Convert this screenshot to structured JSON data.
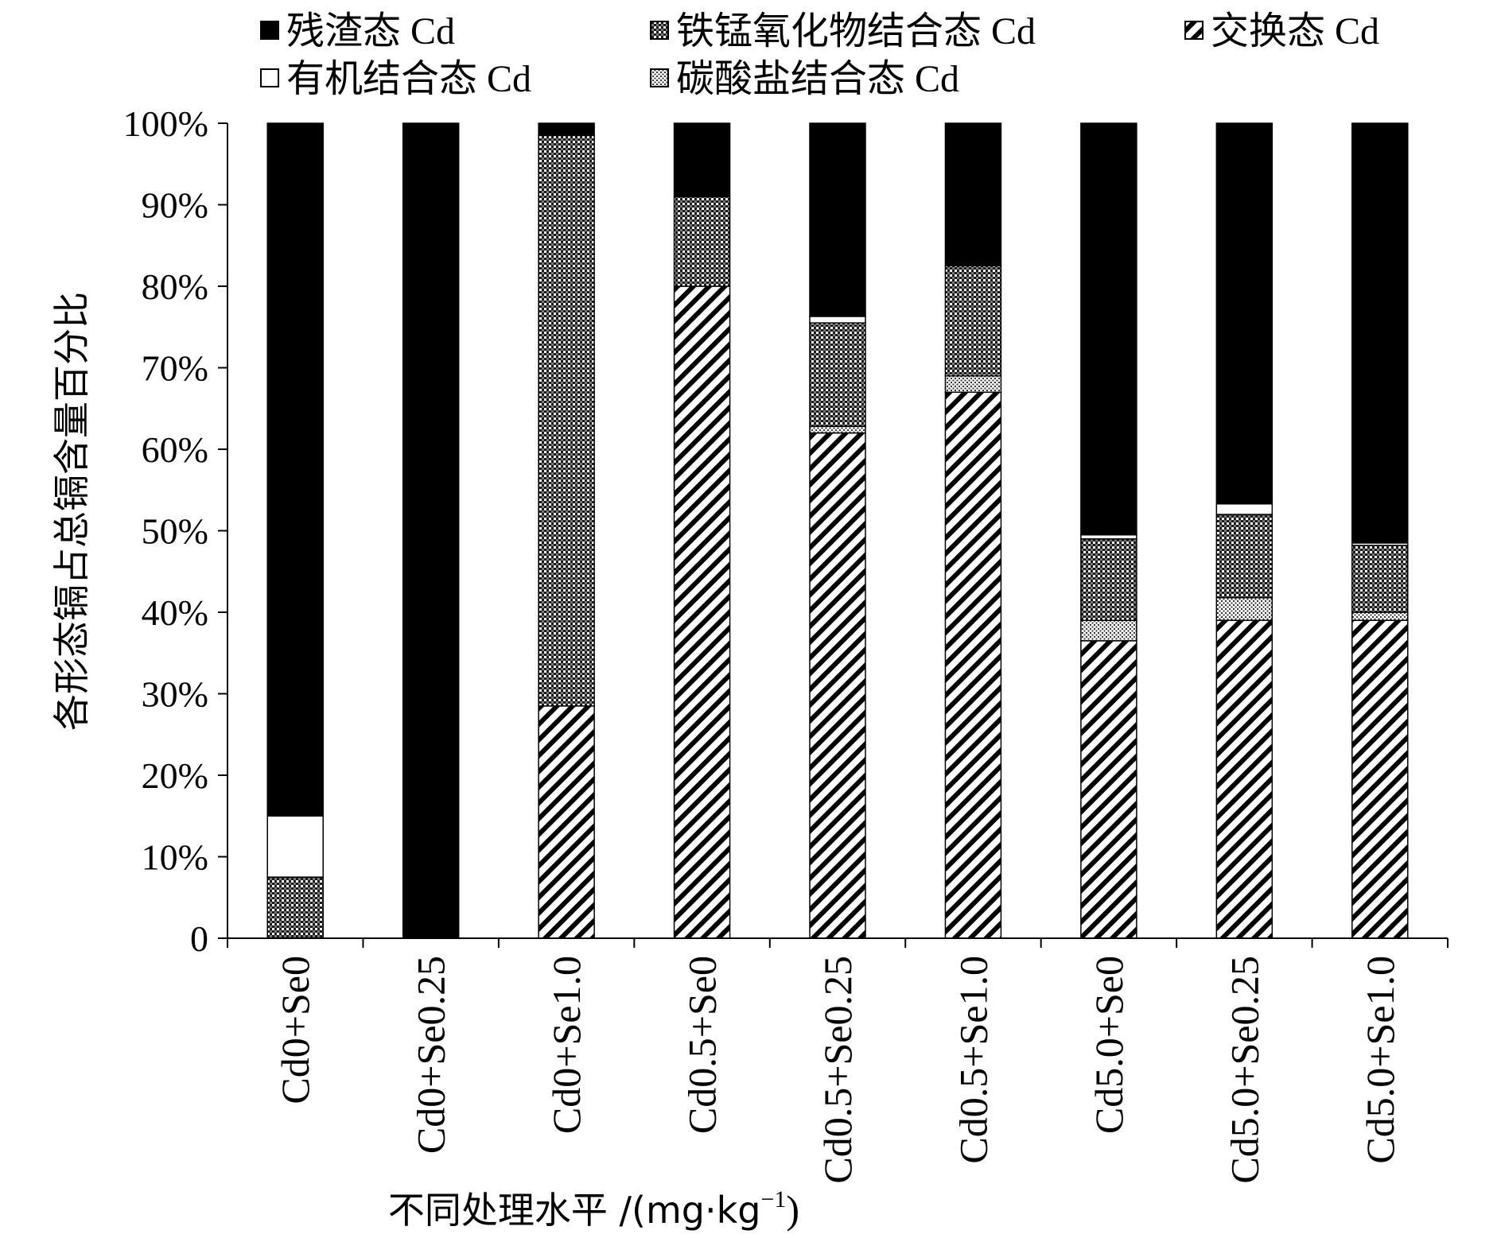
{
  "chart_data": {
    "type": "bar",
    "stacked": true,
    "ylabel": "各形态镉占总镉含量百分比",
    "xlabel": "不同处理水平 /(mg·kg",
    "xlabel_sup": "−1",
    "xlabel_end": ")",
    "ylim": [
      0,
      100
    ],
    "yticks": [
      "0",
      "10%",
      "20%",
      "30%",
      "40%",
      "50%",
      "60%",
      "70%",
      "80%",
      "90%",
      "100%"
    ],
    "legend_position": "top",
    "categories": [
      "Cd0+Se0",
      "Cd0+Se0.25",
      "Cd0+Se1.0",
      "Cd0.5+Se0",
      "Cd0.5+Se0.25",
      "Cd0.5+Se1.0",
      "Cd5.0+Se0",
      "Cd5.0+Se0.25",
      "Cd5.0+Se1.0"
    ],
    "series": [
      {
        "name": "交换态 Cd",
        "pattern": "diagonal-hatch",
        "values": [
          0,
          0,
          28.5,
          80,
          62,
          67,
          36.5,
          39,
          39
        ]
      },
      {
        "name": "碳酸盐结合态 Cd",
        "pattern": "fine-dots",
        "values": [
          0,
          0,
          0,
          0,
          0.8,
          2,
          2.5,
          2.8,
          1
        ]
      },
      {
        "name": "铁锰氧化物结合态 Cd",
        "pattern": "cross-hatch",
        "values": [
          7.5,
          0,
          70,
          11,
          12.7,
          13.5,
          10,
          10.2,
          8.2
        ]
      },
      {
        "name": "有机结合态 Cd",
        "pattern": "white",
        "values": [
          7.5,
          0,
          0,
          0,
          0.8,
          0,
          0.5,
          1.3,
          0.3
        ]
      },
      {
        "name": "残渣态 Cd",
        "pattern": "solid-black",
        "values": [
          85,
          100,
          1.5,
          9,
          23.7,
          17.5,
          50.5,
          46.7,
          51.5
        ]
      }
    ],
    "legend_order": [
      "残渣态 Cd",
      "铁锰氧化物结合态 Cd",
      "交换态 Cd",
      "有机结合态 Cd",
      "碳酸盐结合态 Cd"
    ]
  }
}
